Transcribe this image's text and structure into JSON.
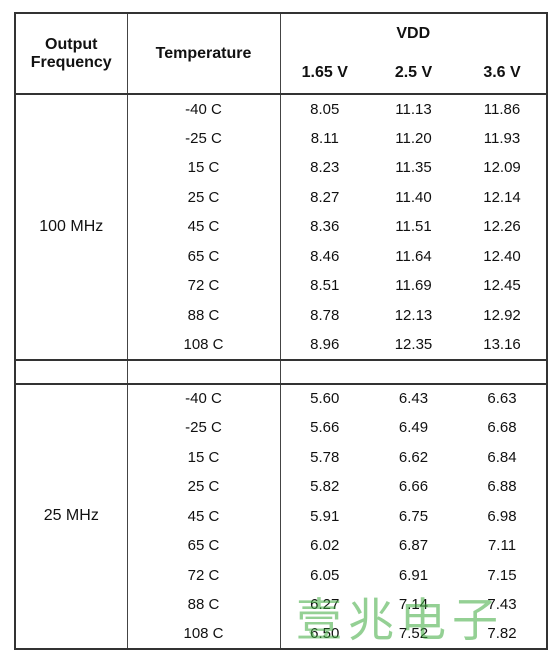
{
  "table": {
    "header": {
      "output_frequency": "Output Frequency",
      "temperature": "Temperature",
      "vdd": "VDD",
      "voltages": [
        "1.65 V",
        "2.5 V",
        "3.6 V"
      ]
    },
    "groups": [
      {
        "frequency": "100 MHz",
        "rows": [
          [
            "-40 C",
            "8.05",
            "11.13",
            "11.86"
          ],
          [
            "-25 C",
            "8.11",
            "11.20",
            "11.93"
          ],
          [
            "15 C",
            "8.23",
            "11.35",
            "12.09"
          ],
          [
            "25 C",
            "8.27",
            "11.40",
            "12.14"
          ],
          [
            "45 C",
            "8.36",
            "11.51",
            "12.26"
          ],
          [
            "65 C",
            "8.46",
            "11.64",
            "12.40"
          ],
          [
            "72 C",
            "8.51",
            "11.69",
            "12.45"
          ],
          [
            "88 C",
            "8.78",
            "12.13",
            "12.92"
          ],
          [
            "108 C",
            "8.96",
            "12.35",
            "13.16"
          ]
        ]
      },
      {
        "frequency": "25 MHz",
        "rows": [
          [
            "-40 C",
            "5.60",
            "6.43",
            "6.63"
          ],
          [
            "-25 C",
            "5.66",
            "6.49",
            "6.68"
          ],
          [
            "15 C",
            "5.78",
            "6.62",
            "6.84"
          ],
          [
            "25 C",
            "5.82",
            "6.66",
            "6.88"
          ],
          [
            "45 C",
            "5.91",
            "6.75",
            "6.98"
          ],
          [
            "65 C",
            "6.02",
            "6.87",
            "7.11"
          ],
          [
            "72 C",
            "6.05",
            "6.91",
            "7.15"
          ],
          [
            "88 C",
            "6.27",
            "7.14",
            "7.43"
          ],
          [
            "108 C",
            "6.50",
            "7.52",
            "7.82"
          ]
        ]
      }
    ]
  },
  "watermark": "壹兆电子"
}
